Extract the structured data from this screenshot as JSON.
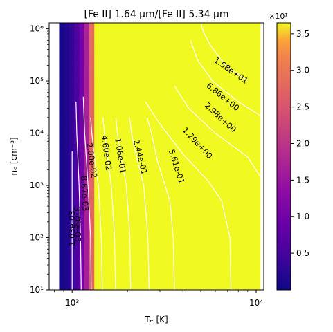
{
  "chart_data": {
    "type": "heatmap",
    "title": "[Fe II] 1.64 μm/[Fe II] 5.34 μm",
    "xlabel": "Tₑ [K]",
    "ylabel": "nₑ [cm⁻³]",
    "x_scale": "log",
    "y_scale": "log",
    "xlim": [
      750,
      11000
    ],
    "ylim": [
      10,
      1300000
    ],
    "x_ticks": [
      {
        "value": 1000,
        "label": "10³"
      },
      {
        "value": 10000,
        "label": "10⁴"
      }
    ],
    "y_ticks": [
      {
        "value": 10,
        "label": "10¹"
      },
      {
        "value": 100,
        "label": "10²"
      },
      {
        "value": 1000,
        "label": "10³"
      },
      {
        "value": 10000,
        "label": "10⁴"
      },
      {
        "value": 100000,
        "label": "10⁵"
      },
      {
        "value": 1000000,
        "label": "10⁶"
      }
    ],
    "colorbar": {
      "colormap": "plasma",
      "min": 0.0,
      "max": 36.5,
      "scale_label": "×10¹",
      "ticks": [
        {
          "value": 5,
          "label": "0.5"
        },
        {
          "value": 10,
          "label": "1.0"
        },
        {
          "value": 15,
          "label": "1.5"
        },
        {
          "value": 20,
          "label": "2.0"
        },
        {
          "value": 25,
          "label": "2.5"
        },
        {
          "value": 30,
          "label": "3.0"
        },
        {
          "value": 35,
          "label": "3.5"
        }
      ]
    },
    "contour_color": "#ffffff",
    "contours": [
      {
        "label": "1.63e-03",
        "level": 0.00163,
        "points": [
          [
            1000,
            10
          ],
          [
            1000,
            100
          ],
          [
            1000,
            1000
          ],
          [
            1000,
            4500
          ]
        ],
        "label_at": [
          1000,
          150
        ]
      },
      {
        "label": "3.76e-03",
        "level": 0.00376,
        "points": [
          [
            1120,
            10
          ],
          [
            1110,
            100
          ],
          [
            1090,
            1000
          ],
          [
            1060,
            10000
          ],
          [
            1050,
            40000
          ]
        ],
        "label_at": [
          1070,
          180
        ]
      },
      {
        "label": "8.67e-03",
        "level": 0.00867,
        "points": [
          [
            1270,
            10
          ],
          [
            1260,
            100
          ],
          [
            1220,
            1000
          ],
          [
            1170,
            10000
          ],
          [
            1150,
            50000
          ]
        ],
        "label_at": [
          1170,
          700
        ]
      },
      {
        "label": "2.00e-02",
        "level": 0.02,
        "points": [
          [
            1460,
            10
          ],
          [
            1440,
            100
          ],
          [
            1390,
            1000
          ],
          [
            1320,
            3500
          ],
          [
            1280,
            10000
          ],
          [
            1260,
            20000
          ]
        ],
        "label_at": [
          1280,
          3000
        ]
      },
      {
        "label": "4.60e-02",
        "level": 0.046,
        "points": [
          [
            1720,
            10
          ],
          [
            1700,
            100
          ],
          [
            1630,
            1000
          ],
          [
            1550,
            4000
          ],
          [
            1500,
            10000
          ],
          [
            1470,
            20000
          ]
        ],
        "label_at": [
          1540,
          4200
        ]
      },
      {
        "label": "1.06e-01",
        "level": 0.106,
        "points": [
          [
            2080,
            10
          ],
          [
            2060,
            100
          ],
          [
            1970,
            1000
          ],
          [
            1830,
            4000
          ],
          [
            1760,
            10000
          ],
          [
            1730,
            20000
          ]
        ],
        "label_at": [
          1830,
          3700
        ]
      },
      {
        "label": "2.44e-01",
        "level": 0.244,
        "points": [
          [
            2620,
            10
          ],
          [
            2580,
            100
          ],
          [
            2450,
            1000
          ],
          [
            2220,
            4000
          ],
          [
            2100,
            10000
          ],
          [
            2050,
            20000
          ]
        ],
        "label_at": [
          2350,
          3500
        ]
      },
      {
        "label": "5.61e-01",
        "level": 0.561,
        "points": [
          [
            3600,
            10
          ],
          [
            3540,
            100
          ],
          [
            3400,
            500
          ],
          [
            3200,
            1000
          ],
          [
            2900,
            3000
          ],
          [
            2700,
            10000
          ],
          [
            2550,
            20000
          ]
        ],
        "label_at": [
          3700,
          2300
        ]
      },
      {
        "label": "1.29e+00",
        "level": 1.29,
        "points": [
          [
            7300,
            10
          ],
          [
            7200,
            100
          ],
          [
            6500,
            500
          ],
          [
            5500,
            1200
          ],
          [
            4000,
            4000
          ],
          [
            3000,
            15000
          ],
          [
            2500,
            40000
          ]
        ],
        "label_at": [
          4800,
          6500
        ]
      },
      {
        "label": "2.98e+00",
        "level": 2.98,
        "points": [
          [
            10500,
            1500
          ],
          [
            9000,
            3500
          ],
          [
            6000,
            10000
          ],
          [
            4300,
            30000
          ],
          [
            3600,
            80000
          ]
        ],
        "label_at": [
          6400,
          20000
        ]
      },
      {
        "label": "6.86e+00",
        "level": 6.86,
        "points": [
          [
            10500,
            22000
          ],
          [
            8000,
            40000
          ],
          [
            5800,
            100000
          ],
          [
            4800,
            250000
          ],
          [
            4400,
            600000
          ]
        ],
        "label_at": [
          6600,
          50000
        ]
      },
      {
        "label": "1.58e+01",
        "level": 15.8,
        "points": [
          [
            9000,
            100000
          ],
          [
            6800,
            200000
          ],
          [
            5600,
            500000
          ],
          [
            5150,
            900000
          ],
          [
            5000,
            1300000
          ]
        ],
        "label_at": [
          7300,
          160000
        ]
      }
    ]
  }
}
